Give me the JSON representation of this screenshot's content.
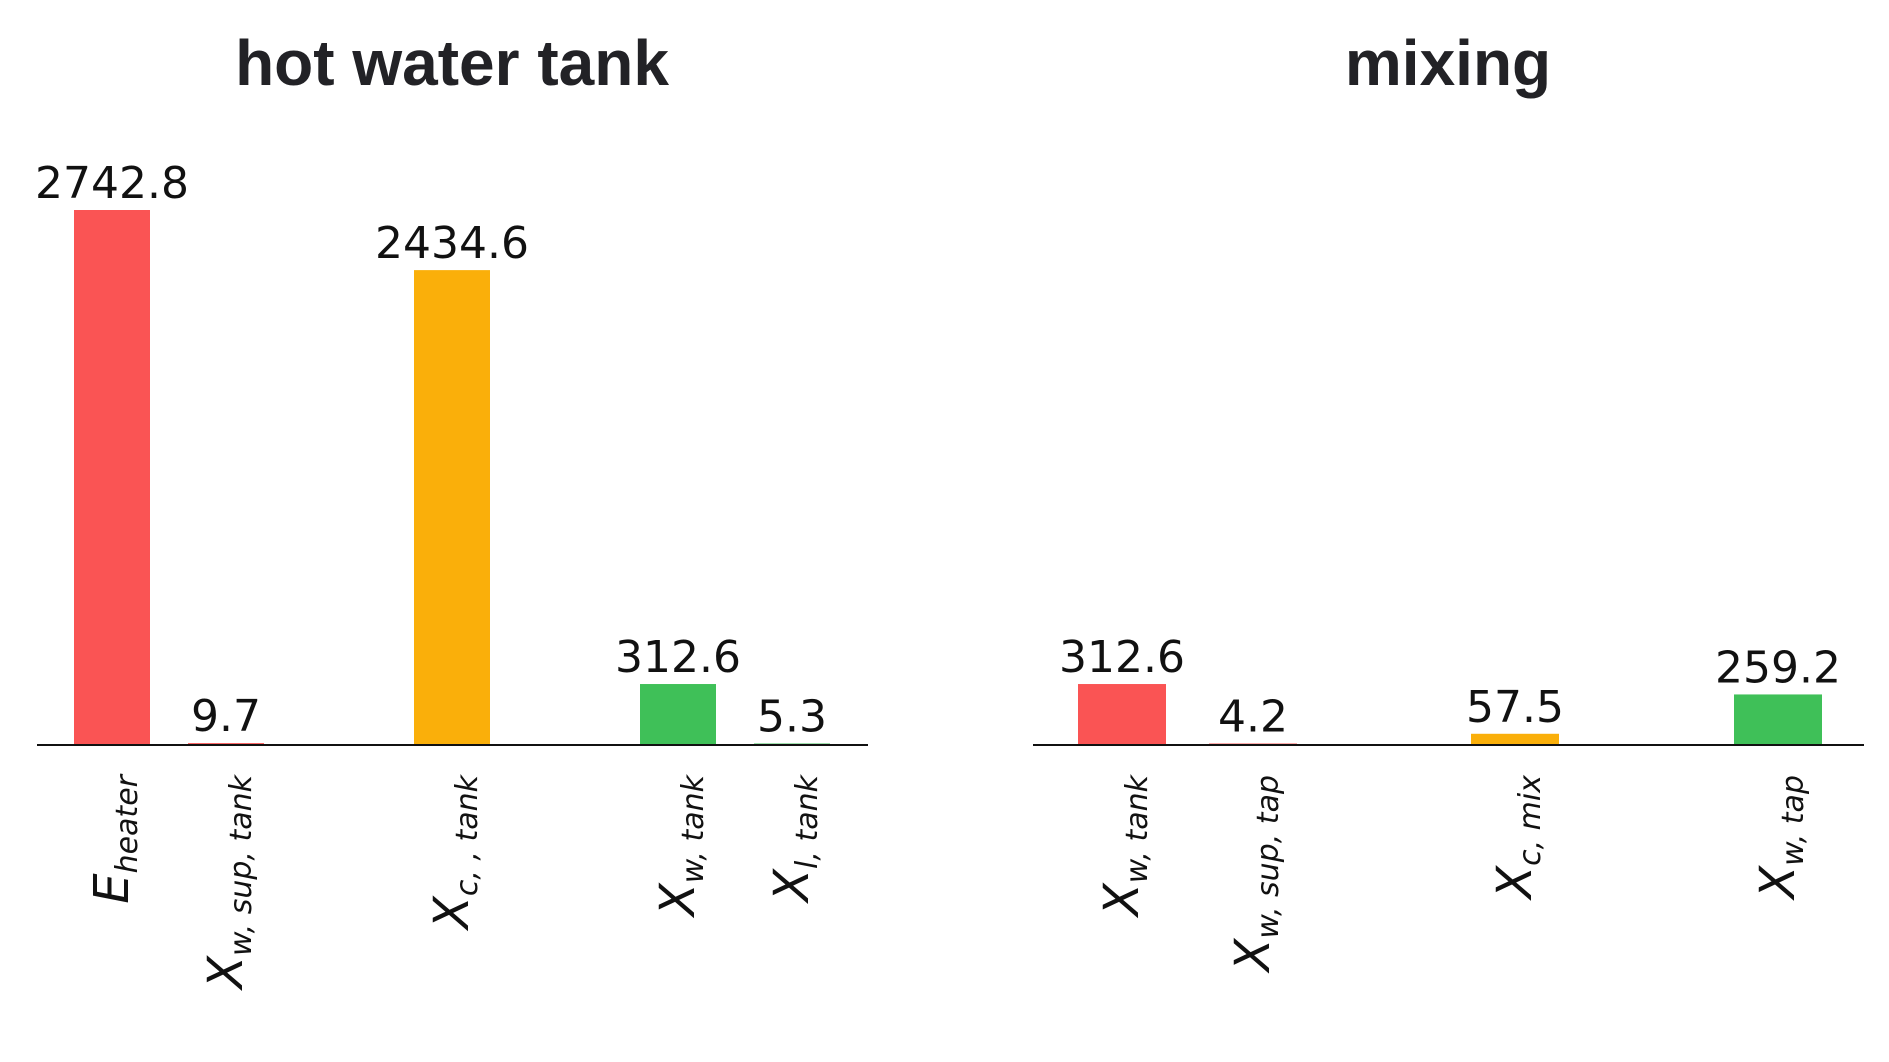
{
  "chart_data": [
    {
      "type": "bar",
      "title": "hot water tank",
      "categories": [
        {
          "main": "E",
          "sub": "heater"
        },
        {
          "main": "X",
          "sub": "w, sup, tank"
        },
        {
          "main": "X",
          "sub": "c, , tank"
        },
        {
          "main": "X",
          "sub": "w, tank"
        },
        {
          "main": "X",
          "sub": "l, tank"
        }
      ],
      "values": [
        2742.8,
        9.7,
        2434.6,
        312.6,
        5.3
      ],
      "value_labels": [
        "2742.8",
        "9.7",
        "2434.6",
        "312.6",
        "5.3"
      ],
      "colors": [
        "#fa5454",
        "#fa5454",
        "#faaf0a",
        "#3fc058",
        "#3fc058"
      ],
      "xlabel": "",
      "ylabel": "",
      "ylim": [
        0,
        2742.8
      ],
      "grid": false,
      "legend": "none"
    },
    {
      "type": "bar",
      "title": "mixing",
      "categories": [
        {
          "main": "X",
          "sub": "w, tank"
        },
        {
          "main": "X",
          "sub": "w, sup, tap"
        },
        {
          "main": "X",
          "sub": "c, mix"
        },
        {
          "main": "X",
          "sub": "w, tap"
        }
      ],
      "values": [
        312.6,
        4.2,
        57.5,
        259.2
      ],
      "value_labels": [
        "312.6",
        "4.2",
        "57.5",
        "259.2"
      ],
      "colors": [
        "#fa5454",
        "#fa5454",
        "#faaf0a",
        "#3fc058"
      ],
      "xlabel": "",
      "ylabel": "",
      "ylim": [
        0,
        2742.8
      ],
      "grid": false,
      "legend": "none"
    }
  ]
}
